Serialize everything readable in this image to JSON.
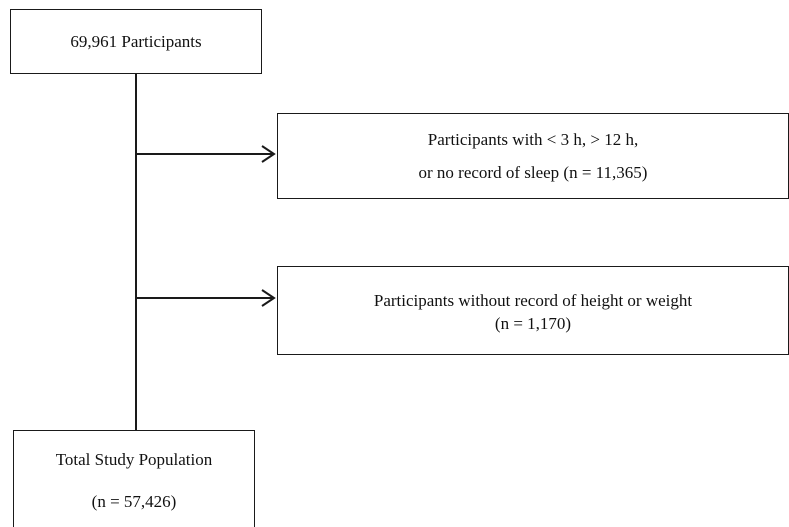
{
  "flowchart": {
    "start_box": {
      "text": "69,961 Participants"
    },
    "exclusions": [
      {
        "line1": "Participants with  < 3 h,  > 12 h,",
        "line2": "or no record of sleep  (n = 11,365)"
      },
      {
        "line1": "Participants without record of height or weight",
        "line2": "(n = 1,170)"
      }
    ],
    "final_box": {
      "line1": "Total Study Population",
      "line2": "(n = 57,426)"
    }
  }
}
